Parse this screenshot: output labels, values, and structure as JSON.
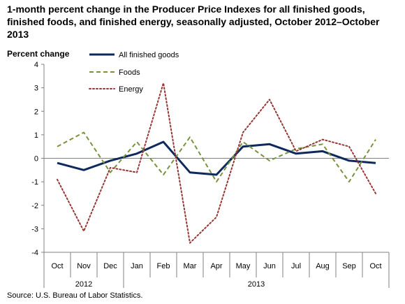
{
  "chart_data": {
    "type": "line",
    "title": "1-month percent change in the Producer Price Indexes for all finished goods, finished foods, and finished energy, seasonally adjusted, October 2012–October 2013",
    "ylabel": "Percent change",
    "ylim": [
      -4,
      4
    ],
    "yticks": [
      4,
      3,
      2,
      1,
      0,
      -1,
      -2,
      -3,
      -4
    ],
    "categories": [
      "Oct",
      "Nov",
      "Dec",
      "Jan",
      "Feb",
      "Mar",
      "Apr",
      "May",
      "Jun",
      "Jul",
      "Aug",
      "Sep",
      "Oct"
    ],
    "year_groups": [
      {
        "label": "2012",
        "start": 0,
        "end": 2
      },
      {
        "label": "2013",
        "start": 3,
        "end": 12
      }
    ],
    "series": [
      {
        "name": "All finished goods",
        "color": "#0e2a5c",
        "style": "solid",
        "values": [
          -0.2,
          -0.5,
          -0.1,
          0.2,
          0.7,
          -0.6,
          -0.7,
          0.5,
          0.6,
          0.2,
          0.3,
          -0.1,
          -0.2
        ]
      },
      {
        "name": "Foods",
        "color": "#77933c",
        "style": "dashed",
        "values": [
          0.5,
          1.1,
          -0.6,
          0.7,
          -0.7,
          0.9,
          -1.0,
          0.7,
          -0.1,
          0.4,
          0.6,
          -1.0,
          0.8
        ]
      },
      {
        "name": "Energy",
        "color": "#953735",
        "style": "dotted",
        "values": [
          -0.9,
          -3.1,
          -0.4,
          -0.6,
          3.2,
          -3.6,
          -2.5,
          1.1,
          2.5,
          0.3,
          0.8,
          0.5,
          -1.5
        ]
      }
    ],
    "source": "Source: U.S. Bureau of Labor Statistics."
  }
}
